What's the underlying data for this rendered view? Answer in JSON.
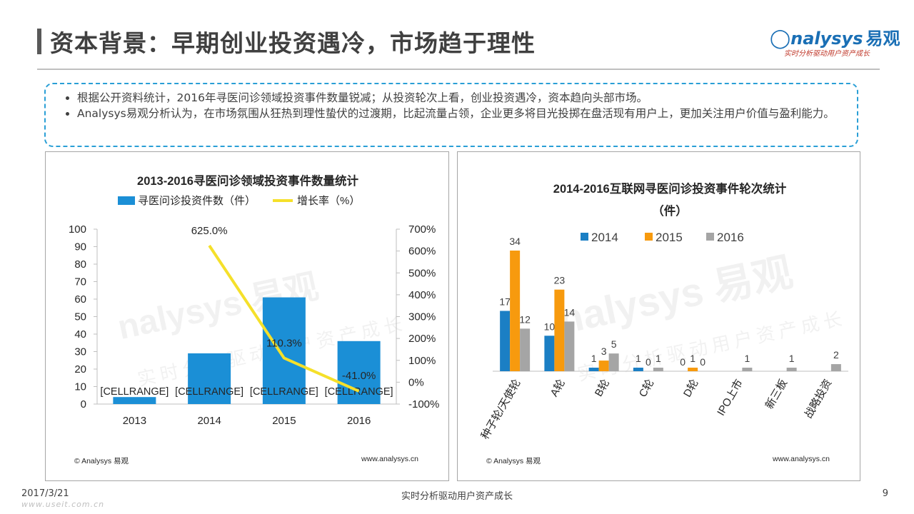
{
  "header": {
    "title": "资本背景：早期创业投资遇冷，市场趋于理性",
    "logo_main": "nalysys",
    "logo_cn": "易观",
    "logo_sub": "实时分析驱动用户资产成长"
  },
  "summary": {
    "bullets": [
      "根据公开资料统计，2016年寻医问诊领域投资事件数量锐减；从投资轮次上看，创业投资遇冷，资本趋向头部市场。",
      "Analysys易观分析认为，在市场氛围从狂热到理性蛰伏的过渡期，比起流量占领，企业更多将目光投掷在盘活现有用户上，更加关注用户价值与盈利能力。"
    ]
  },
  "chart_data": [
    {
      "type": "bar",
      "title": "2013-2016寻医问诊领域投资事件数量统计",
      "categories": [
        "2013",
        "2014",
        "2015",
        "2016"
      ],
      "series": [
        {
          "name": "寻医问诊投资件数（件）",
          "type": "bar",
          "axis": "left",
          "color": "#1b8fd6",
          "values": [
            4,
            29,
            61,
            36
          ],
          "labels": [
            "[CELLRANGE]",
            "[CELLRANGE]",
            "[CELLRANGE]",
            "[CELLRANGE]"
          ]
        },
        {
          "name": "增长率（%）",
          "type": "line",
          "axis": "right",
          "color": "#f5e02a",
          "values": [
            null,
            625.0,
            110.3,
            -41.0
          ],
          "labels": [
            "",
            "625.0%",
            "110.3%",
            "-41.0%"
          ]
        }
      ],
      "ylim": [
        0,
        100
      ],
      "y_ticks": [
        "0",
        "10",
        "20",
        "30",
        "40",
        "50",
        "60",
        "70",
        "80",
        "90",
        "100"
      ],
      "y2lim": [
        -100,
        700
      ],
      "y2_ticks": [
        "-100%",
        "0%",
        "100%",
        "200%",
        "300%",
        "400%",
        "500%",
        "600%",
        "700%"
      ],
      "legend": "top",
      "grid": false,
      "source": "© Analysys 易观",
      "url": "www.analysys.cn"
    },
    {
      "type": "bar",
      "title": "2014-2016互联网寻医问诊投资事件轮次统计",
      "subtitle": "（件）",
      "categories": [
        "种子轮/天使轮",
        "A轮",
        "B轮",
        "C轮",
        "D轮",
        "IPO上市",
        "新三板",
        "战略投资"
      ],
      "series": [
        {
          "name": "2014",
          "color": "#1b7fc4",
          "values": [
            17,
            10,
            1,
            1,
            0,
            0,
            0,
            0
          ],
          "labels": [
            "17",
            "10",
            "1",
            "1",
            "0",
            "",
            "",
            ""
          ]
        },
        {
          "name": "2015",
          "color": "#f79a0e",
          "values": [
            34,
            23,
            3,
            0,
            1,
            0,
            0,
            0
          ],
          "labels": [
            "34",
            "23",
            "3",
            "0",
            "1",
            "",
            "",
            ""
          ]
        },
        {
          "name": "2016",
          "color": "#a5a5a5",
          "values": [
            12,
            14,
            5,
            1,
            0,
            1,
            1,
            2
          ],
          "labels": [
            "12",
            "14",
            "5",
            "1",
            "0",
            "1",
            "1",
            "2"
          ]
        }
      ],
      "ylim": [
        0,
        34
      ],
      "legend": "top",
      "grid": false,
      "source": "© Analysys 易观",
      "url": "www.analysys.cn"
    }
  ],
  "watermark": {
    "main": "nalysys 易观",
    "sub": "实时分析驱动用户资产成长"
  },
  "footer": {
    "date": "2017/3/21",
    "center": "实时分析驱动用户资产成长",
    "page": "9",
    "url": "www.useit.com.cn"
  }
}
